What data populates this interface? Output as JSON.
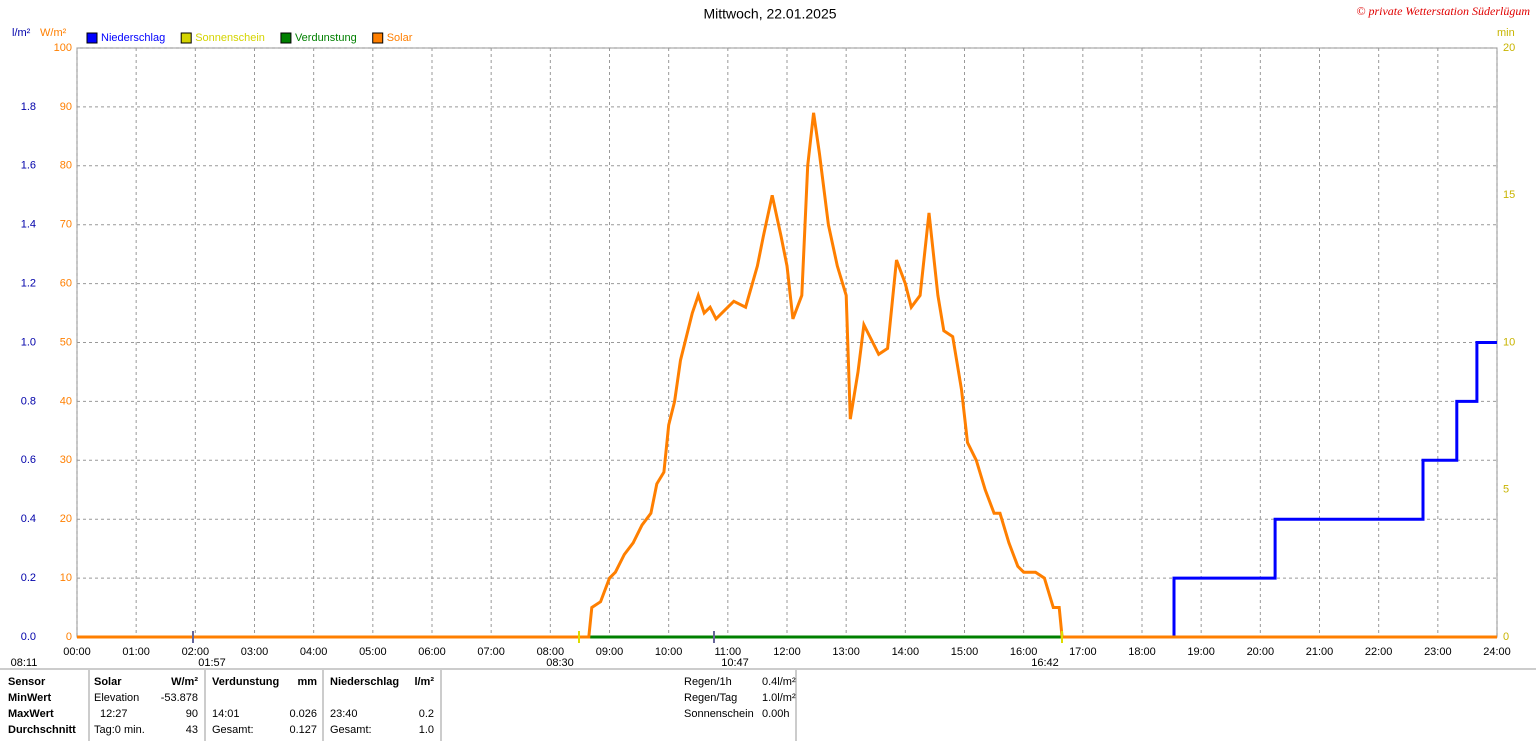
{
  "chart_data": {
    "type": "line",
    "title": "Mittwoch, 22.01.2025",
    "credit": "© private Wetterstation Süderlügum",
    "y_unit": "W/m²",
    "y2_unit": "l/m²",
    "y3_unit": "min",
    "xlim": [
      0,
      24
    ],
    "xticks": [
      {
        "value": 0,
        "label": "00:00"
      },
      {
        "value": 1,
        "label": "01:00"
      },
      {
        "value": 2,
        "label": "02:00"
      },
      {
        "value": 3,
        "label": "03:00"
      },
      {
        "value": 4,
        "label": "04:00"
      },
      {
        "value": 5,
        "label": "05:00"
      },
      {
        "value": 6,
        "label": "06:00"
      },
      {
        "value": 7,
        "label": "07:00"
      },
      {
        "value": 8,
        "label": "08:00"
      },
      {
        "value": 9,
        "label": "09:00"
      },
      {
        "value": 10,
        "label": "10:00"
      },
      {
        "value": 11,
        "label": "11:00"
      },
      {
        "value": 12,
        "label": "12:00"
      },
      {
        "value": 13,
        "label": "13:00"
      },
      {
        "value": 14,
        "label": "14:00"
      },
      {
        "value": 15,
        "label": "15:00"
      },
      {
        "value": 16,
        "label": "16:00"
      },
      {
        "value": 17,
        "label": "17:00"
      },
      {
        "value": 18,
        "label": "18:00"
      },
      {
        "value": 19,
        "label": "19:00"
      },
      {
        "value": 20,
        "label": "20:00"
      },
      {
        "value": 21,
        "label": "21:00"
      },
      {
        "value": 22,
        "label": "22:00"
      },
      {
        "value": 23,
        "label": "23:00"
      },
      {
        "value": 24,
        "label": "24:00"
      }
    ],
    "ylim": [
      0,
      100
    ],
    "yticks": [
      0,
      10,
      20,
      30,
      40,
      50,
      60,
      70,
      80,
      90,
      100
    ],
    "y2lim": [
      0,
      2
    ],
    "y2ticks": [
      {
        "value": 0,
        "label": "0.0"
      },
      {
        "value": 0.2,
        "label": "0.2"
      },
      {
        "value": 0.4,
        "label": "0.4"
      },
      {
        "value": 0.6,
        "label": "0.6"
      },
      {
        "value": 0.8,
        "label": "0.8"
      },
      {
        "value": 1,
        "label": "1.0"
      },
      {
        "value": 1.2,
        "label": "1.2"
      },
      {
        "value": 1.4,
        "label": "1.4"
      },
      {
        "value": 1.6,
        "label": "1.6"
      },
      {
        "value": 1.8,
        "label": "1.8"
      }
    ],
    "y3lim": [
      0,
      20
    ],
    "y3ticks": [
      0,
      5,
      10,
      15,
      20
    ],
    "grid": true,
    "series": [
      {
        "name": "Niederschlag",
        "color": "#0000ff",
        "axis": "y2",
        "x": [
          0,
          18.54,
          18.54,
          20.25,
          20.25,
          22.75,
          22.75,
          23.32,
          23.32,
          23.66,
          23.66,
          24
        ],
        "values": [
          0,
          0,
          0.2,
          0.2,
          0.4,
          0.4,
          0.6,
          0.6,
          0.8,
          0.8,
          1.0,
          1.0
        ]
      },
      {
        "name": "Sonnenschein",
        "color": "#d4d400",
        "axis": "y3",
        "x": [
          0,
          24
        ],
        "values": [
          0,
          0
        ]
      },
      {
        "name": "Verdunstung",
        "color": "#008000",
        "axis": "y2",
        "x": [
          0,
          24
        ],
        "values": [
          0,
          0
        ]
      },
      {
        "name": "Solar",
        "color": "#ff7f00",
        "axis": "y",
        "x": [
          0,
          8.65,
          8.7,
          8.85,
          9.0,
          9.1,
          9.25,
          9.4,
          9.55,
          9.7,
          9.8,
          9.92,
          10.0,
          10.1,
          10.2,
          10.3,
          10.4,
          10.5,
          10.6,
          10.7,
          10.8,
          11.0,
          11.1,
          11.3,
          11.5,
          11.6,
          11.75,
          11.9,
          12.0,
          12.1,
          12.25,
          12.35,
          12.45,
          12.55,
          12.7,
          12.85,
          13.0,
          13.07,
          13.2,
          13.3,
          13.45,
          13.55,
          13.7,
          13.85,
          14.0,
          14.1,
          14.25,
          14.4,
          14.55,
          14.65,
          14.8,
          14.95,
          15.05,
          15.2,
          15.35,
          15.5,
          15.6,
          15.75,
          15.9,
          16.0,
          16.2,
          16.35,
          16.5,
          16.6,
          16.65,
          24
        ],
        "values": [
          0,
          0,
          5,
          6,
          10,
          11,
          14,
          16,
          19,
          21,
          26,
          28,
          36,
          40,
          47,
          51,
          55,
          58,
          55,
          56,
          54,
          56,
          57,
          56,
          63,
          68,
          75,
          68,
          63,
          54,
          58,
          80,
          89,
          82,
          70,
          63,
          58,
          37,
          45,
          53,
          50,
          48,
          49,
          64,
          60,
          56,
          58,
          72,
          58,
          52,
          51,
          42,
          33,
          30,
          25,
          21,
          21,
          16,
          12,
          11,
          11,
          10,
          5,
          5,
          0,
          0
        ]
      }
    ],
    "annotations": [
      "08:11",
      "01:57",
      "08:30",
      "10:47",
      "16:42"
    ]
  },
  "stats": {
    "rows": [
      [
        "Sensor",
        "Solar",
        "W/m²",
        "Verdunstung",
        "mm",
        "Niederschlag",
        "l/m²"
      ],
      [
        "MinWert",
        "Elevation",
        "-53.878",
        "",
        "",
        "",
        ""
      ],
      [
        "MaxWert",
        "12:27",
        "90",
        "14:01",
        "0.026",
        "23:40",
        "0.2"
      ],
      [
        "Durchschnitt",
        "Tag:0 min.",
        "43",
        "Gesamt:",
        "0.127",
        "Gesamt:",
        "1.0"
      ]
    ]
  },
  "summary": {
    "rows": [
      [
        "Regen/1h",
        "0.4l/m²"
      ],
      [
        "Regen/Tag",
        "1.0l/m²"
      ],
      [
        "Sonnenschein",
        "0.00h"
      ]
    ]
  }
}
